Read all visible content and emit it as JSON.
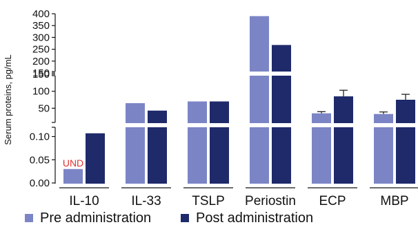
{
  "chart_data": {
    "type": "bar",
    "categories": [
      "IL-10",
      "IL-33",
      "TSLP",
      "Periostin",
      "ECP",
      "MBP"
    ],
    "series": [
      {
        "name": "Pre administration",
        "values": [
          0.03,
          65,
          70,
          390,
          35,
          33
        ],
        "errors": [
          null,
          null,
          null,
          null,
          5,
          6
        ]
      },
      {
        "name": "Post administration",
        "values": [
          0.107,
          43,
          70,
          268,
          85,
          75
        ],
        "errors": [
          null,
          null,
          null,
          null,
          18,
          16
        ]
      }
    ],
    "ylabel": "Serum proteins, pg/mL",
    "segments": [
      {
        "ylim": [
          0,
          0.12
        ],
        "ticks": [
          {
            "v": 0,
            "label": "0.00"
          },
          {
            "v": 0.05,
            "label": "0.05"
          },
          {
            "v": 0.1,
            "label": "0.10"
          }
        ]
      },
      {
        "ylim": [
          0,
          150
        ],
        "ticks": [
          {
            "v": 50,
            "label": "50"
          },
          {
            "v": 100,
            "label": "100"
          },
          {
            "v": 150,
            "label": "150"
          }
        ]
      },
      {
        "ylim": [
          150,
          400
        ],
        "ticks": [
          {
            "v": 150,
            "label": "150"
          },
          {
            "v": 200,
            "label": "200"
          },
          {
            "v": 250,
            "label": "250"
          },
          {
            "v": 300,
            "label": "300"
          },
          {
            "v": 350,
            "label": "350"
          },
          {
            "v": 400,
            "label": "400"
          }
        ]
      }
    ],
    "annotations": [
      {
        "category": "IL-10",
        "series": "Pre administration",
        "text": "UND",
        "color": "#e03030"
      }
    ],
    "colors": {
      "pre": "#7b85c6",
      "post": "#1f2a6b",
      "axis": "#111111"
    },
    "axis_break": true
  },
  "legend": {
    "pre_label": "Pre administration",
    "post_label": "Post administration"
  }
}
